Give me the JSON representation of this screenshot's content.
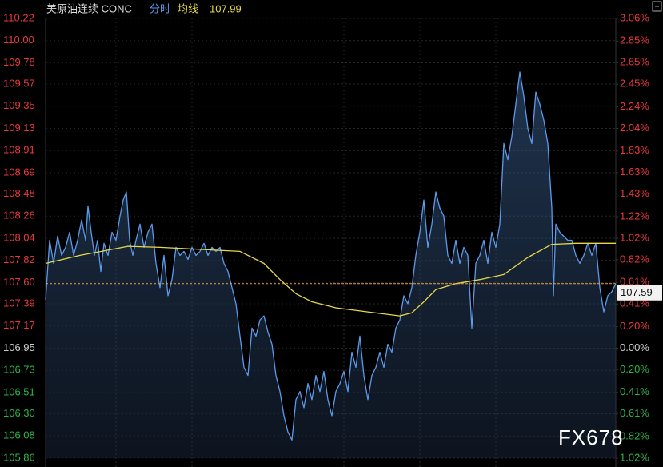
{
  "chart_data": {
    "type": "line",
    "title": "美原油连续 CONC",
    "current_average": 107.99,
    "current_price": 107.59,
    "watermark": "FX678",
    "grid": true,
    "xlim": [
      0,
      713
    ],
    "ylim": [
      105.86,
      110.22
    ],
    "y2lim": [
      -1.02,
      3.06
    ],
    "yticks": [
      110.22,
      {
        "value": 110,
        "label": "110.00"
      },
      109.78,
      109.57,
      109.35,
      109.13,
      108.91,
      108.69,
      108.48,
      108.26,
      108.04,
      107.82,
      {
        "value": 107.6,
        "label": "107.60"
      },
      107.39,
      107.17,
      106.95,
      106.73,
      106.51,
      {
        "value": 106.3,
        "label": "106.30"
      },
      106.08,
      105.86
    ],
    "y2ticks": [
      {
        "value": 3.06,
        "label": "3.06%"
      },
      {
        "value": 2.85,
        "label": "2.85%"
      },
      {
        "value": 2.65,
        "label": "2.65%"
      },
      {
        "value": 2.45,
        "label": "2.45%"
      },
      {
        "value": 2.24,
        "label": "2.24%"
      },
      {
        "value": 2.04,
        "label": "2.04%"
      },
      {
        "value": 1.83,
        "label": "1.83%"
      },
      {
        "value": 1.63,
        "label": "1.63%"
      },
      {
        "value": 1.43,
        "label": "1.43%"
      },
      {
        "value": 1.22,
        "label": "1.22%"
      },
      {
        "value": 1.02,
        "label": "1.02%"
      },
      {
        "value": 0.82,
        "label": "0.82%"
      },
      {
        "value": 0.61,
        "label": "0.61%"
      },
      {
        "value": 0.41,
        "label": "0.41%"
      },
      {
        "value": 0.2,
        "label": "0.20%"
      },
      {
        "value": 0,
        "label": "0.00%"
      },
      {
        "value": -0.2,
        "label": "0.20%"
      },
      {
        "value": -0.41,
        "label": "0.41%"
      },
      {
        "value": -0.61,
        "label": "0.61%"
      },
      {
        "value": -0.82,
        "label": "0.82%"
      },
      {
        "value": -1.02,
        "label": "1.02%"
      }
    ],
    "series": [
      {
        "name": "分时",
        "color": "#5b9bec",
        "x": [
          0,
          5,
          10,
          15,
          20,
          25,
          30,
          35,
          40,
          45,
          50,
          53,
          57,
          61,
          65,
          69,
          73,
          78,
          83,
          88,
          93,
          97,
          101,
          105,
          109,
          113,
          118,
          123,
          128,
          133,
          138,
          143,
          148,
          153,
          158,
          163,
          168,
          173,
          178,
          183,
          188,
          193,
          198,
          203,
          208,
          213,
          218,
          223,
          228,
          233,
          238,
          243,
          248,
          253,
          258,
          263,
          268,
          273,
          278,
          283,
          288,
          293,
          298,
          303,
          308,
          313,
          318,
          323,
          328,
          333,
          338,
          343,
          348,
          353,
          358,
          363,
          368,
          373,
          378,
          383,
          388,
          393,
          398,
          403,
          408,
          413,
          418,
          423,
          428,
          433,
          438,
          443,
          448,
          453,
          458,
          463,
          468,
          473,
          478,
          483,
          488,
          493,
          498,
          503,
          508,
          513,
          518,
          523,
          528,
          533,
          538,
          543,
          548,
          553,
          558,
          563,
          568,
          573,
          578,
          583,
          588,
          593,
          598,
          603,
          608,
          613,
          618,
          623,
          628,
          633,
          635,
          638,
          643,
          648,
          653,
          658,
          663,
          668,
          673,
          678,
          683,
          688,
          693,
          698,
          703,
          708,
          713
        ],
        "values": [
          107.43,
          108.02,
          107.79,
          108.06,
          107.87,
          107.95,
          108.1,
          107.87,
          108.02,
          108.22,
          108.02,
          108.36,
          108.1,
          107.87,
          108.02,
          107.71,
          107.99,
          107.87,
          108.1,
          108.02,
          108.26,
          108.42,
          108.5,
          108.02,
          107.87,
          108.02,
          108.18,
          107.95,
          108.1,
          108.18,
          107.79,
          107.55,
          107.87,
          107.47,
          107.63,
          107.95,
          107.87,
          107.91,
          107.83,
          107.95,
          107.87,
          107.91,
          107.99,
          107.87,
          107.95,
          107.91,
          107.95,
          107.79,
          107.71,
          107.55,
          107.39,
          107.07,
          106.76,
          106.68,
          107.15,
          107.07,
          107.23,
          107.27,
          107.11,
          106.99,
          106.68,
          106.52,
          106.28,
          106.12,
          106.04,
          106.44,
          106.52,
          106.36,
          106.6,
          106.44,
          106.68,
          106.52,
          106.72,
          106.44,
          106.28,
          106.52,
          106.6,
          106.72,
          106.52,
          106.91,
          106.76,
          107.07,
          106.68,
          106.44,
          106.68,
          106.76,
          106.91,
          106.76,
          106.99,
          106.91,
          107.15,
          107.23,
          107.47,
          107.39,
          107.55,
          107.87,
          108.1,
          108.42,
          107.95,
          108.18,
          108.5,
          108.34,
          108.26,
          107.87,
          107.79,
          108.02,
          107.79,
          107.95,
          107.87,
          107.15,
          107.79,
          107.87,
          108.02,
          107.79,
          108.1,
          107.95,
          108.18,
          108.98,
          108.82,
          109.05,
          109.37,
          109.69,
          109.45,
          109.13,
          108.98,
          109.49,
          109.37,
          109.21,
          108.98,
          108.34,
          107.47,
          108.18,
          108.1,
          108.06,
          108.02,
          108.02,
          107.87,
          107.79,
          107.87,
          107.99,
          107.87,
          107.99,
          107.55,
          107.31,
          107.47,
          107.51,
          107.59
        ]
      },
      {
        "name": "均线",
        "color": "#e5d84a",
        "x": [
          0,
          43,
          103,
          143,
          243,
          273,
          293,
          313,
          333,
          363,
          403,
          443,
          458,
          473,
          488,
          513,
          543,
          573,
          603,
          633,
          663,
          713
        ],
        "values": [
          107.79,
          107.87,
          107.96,
          107.95,
          107.91,
          107.79,
          107.63,
          107.49,
          107.41,
          107.35,
          107.31,
          107.27,
          107.3,
          107.41,
          107.53,
          107.59,
          107.63,
          107.68,
          107.85,
          107.98,
          107.99,
          107.99
        ]
      }
    ]
  }
}
